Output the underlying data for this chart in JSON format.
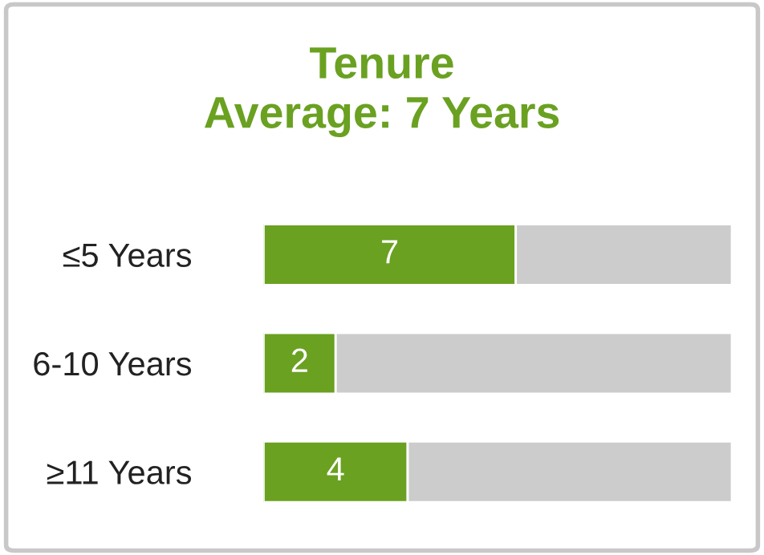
{
  "chart_data": {
    "type": "bar",
    "orientation": "horizontal",
    "stacked": true,
    "title": "Tenure\nAverage: 7 Years",
    "categories": [
      "≤5 Years",
      "6-10 Years",
      "≥11 Years"
    ],
    "series": [
      {
        "color": "#6aa121",
        "values": [
          7,
          2,
          4
        ],
        "value_labels": [
          "7",
          "2",
          "4"
        ]
      },
      {
        "color": "#cccccc",
        "values": [
          6,
          11,
          9
        ]
      }
    ],
    "xlim": [
      0,
      13
    ],
    "tick_labels": "y",
    "grid": false,
    "legend": false
  }
}
